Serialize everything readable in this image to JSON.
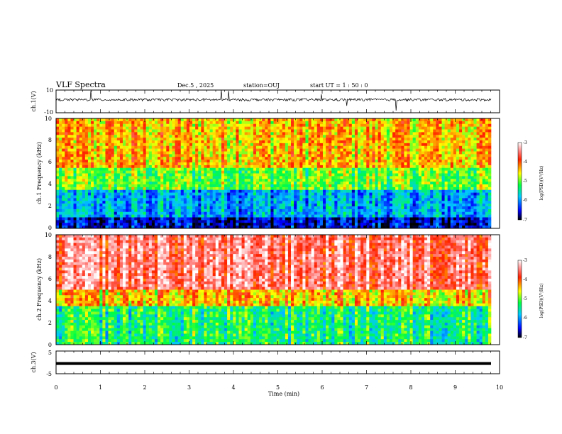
{
  "chart_data": {
    "type": "heatmap",
    "title": "VLF Spectra",
    "header": {
      "date": "Dec.5 , 2025",
      "station": "station=OUJ",
      "start": "start UT = 1 : 50 : 0"
    },
    "xlabel": "Time (min)",
    "xlim": [
      0,
      10
    ],
    "xticks": [
      "0",
      "1",
      "2",
      "3",
      "4",
      "5",
      "6",
      "7",
      "8",
      "9",
      "10"
    ],
    "panels": [
      {
        "kind": "waveform",
        "ylabel": "ch.1(V)",
        "ylim": [
          -10,
          10
        ],
        "yticks": [
          "10",
          "-10"
        ],
        "mean_level": 1.5
      },
      {
        "kind": "spectrogram",
        "ylabel": "ch.1 Frequency (kHz)",
        "ylim": [
          0,
          10
        ],
        "yticks": [
          "0",
          "2",
          "4",
          "6",
          "8",
          "10"
        ],
        "colorbar": {
          "label": "log(PSD)(V²/Hz)",
          "range": [
            -7,
            -3
          ],
          "ticks": [
            "-3",
            "-4",
            "-5",
            "-6",
            "-7"
          ]
        },
        "band_log_psd": [
          {
            "f_khz": [
              0,
              1
            ],
            "value": -6.6
          },
          {
            "f_khz": [
              1,
              3.5
            ],
            "value": -5.9
          },
          {
            "f_khz": [
              3.5,
              5.5
            ],
            "value": -5.0
          },
          {
            "f_khz": [
              5.5,
              10
            ],
            "value": -4.4
          }
        ]
      },
      {
        "kind": "spectrogram",
        "ylabel": "ch.2 Frequency (kHz)",
        "ylim": [
          0,
          10
        ],
        "yticks": [
          "0",
          "2",
          "4",
          "6",
          "8",
          "10"
        ],
        "colorbar": {
          "label": "log(PSD)(V²/Hz)",
          "range": [
            -7,
            -3
          ],
          "ticks": [
            "-3",
            "-4",
            "-5",
            "-6",
            "-7"
          ]
        },
        "band_log_psd": [
          {
            "f_khz": [
              0,
              3.5
            ],
            "value": -5.3
          },
          {
            "f_khz": [
              3.5,
              5
            ],
            "value": -4.4
          },
          {
            "f_khz": [
              5,
              10
            ],
            "value": -3.5
          }
        ]
      },
      {
        "kind": "waveform",
        "ylabel": "ch.3(V)",
        "ylim": [
          -5,
          5
        ],
        "yticks": [
          "5",
          "-5"
        ],
        "mean_level": -0.5
      }
    ]
  }
}
